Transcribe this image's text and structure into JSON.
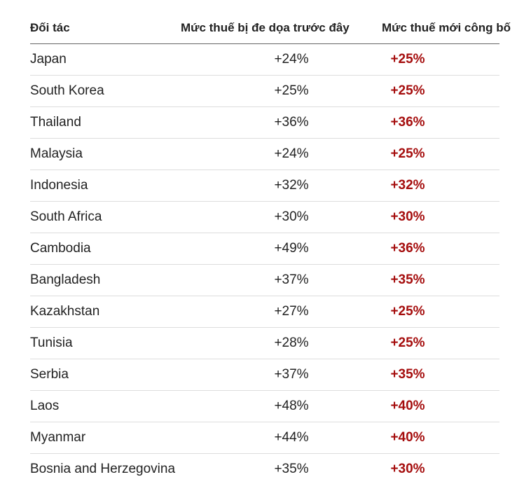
{
  "table": {
    "header": [
      "Đối tác",
      "Mức thuế bị đe dọa trước đây",
      "Mức thuế mới công bố"
    ],
    "rows": [
      [
        "Japan",
        "+24%",
        "+25%"
      ],
      [
        "South Korea",
        "+25%",
        "+25%"
      ],
      [
        "Thailand",
        "+36%",
        "+36%"
      ],
      [
        "Malaysia",
        "+24%",
        "+25%"
      ],
      [
        "Indonesia",
        "+32%",
        "+32%"
      ],
      [
        "South Africa",
        "+30%",
        "+30%"
      ],
      [
        "Cambodia",
        "+49%",
        "+36%"
      ],
      [
        "Bangladesh",
        "+37%",
        "+35%"
      ],
      [
        "Kazakhstan",
        "+27%",
        "+25%"
      ],
      [
        "Tunisia",
        "+28%",
        "+25%"
      ],
      [
        "Serbia",
        "+37%",
        "+35%"
      ],
      [
        "Laos",
        "+48%",
        "+40%"
      ],
      [
        "Myanmar",
        "+44%",
        "+40%"
      ],
      [
        "Bosnia and Herzegovina",
        "+35%",
        "+30%"
      ]
    ]
  }
}
